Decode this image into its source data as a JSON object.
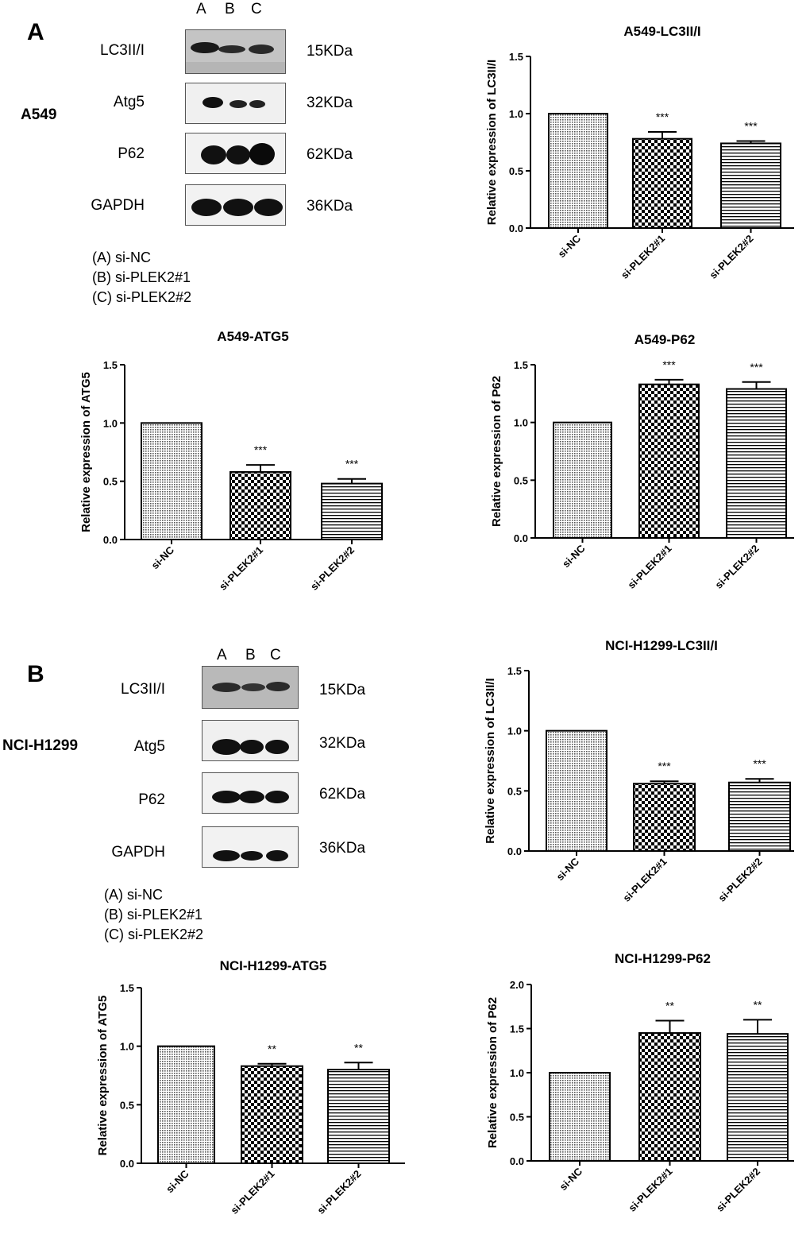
{
  "panels": [
    {
      "letter": "A",
      "cell_line": "A549",
      "lanes": [
        "A",
        "B",
        "C"
      ],
      "proteins": [
        {
          "name": "LC3II/I",
          "kda": "15KDa"
        },
        {
          "name": "Atg5",
          "kda": "32KDa"
        },
        {
          "name": "P62",
          "kda": "62KDa"
        },
        {
          "name": "GAPDH",
          "kda": "36KDa"
        }
      ],
      "legend": [
        "(A) si-NC",
        "(B) si-PLEK2#1",
        "(C) si-PLEK2#2"
      ]
    },
    {
      "letter": "B",
      "cell_line": "NCI-H1299",
      "lanes": [
        "A",
        "B",
        "C"
      ],
      "proteins": [
        {
          "name": "LC3II/I",
          "kda": "15KDa"
        },
        {
          "name": "Atg5",
          "kda": "32KDa"
        },
        {
          "name": "P62",
          "kda": "62KDa"
        },
        {
          "name": "GAPDH",
          "kda": "36KDa"
        }
      ],
      "legend": [
        "(A) si-NC",
        "(B) si-PLEK2#1",
        "(C) si-PLEK2#2"
      ]
    }
  ],
  "chart_data": [
    {
      "type": "bar",
      "title": "A549-LC3II/I",
      "ylabel": "Relative expression of LC3II/I",
      "categories": [
        "si-NC",
        "si-PLEK2#1",
        "si-PLEK2#2"
      ],
      "values": [
        1.0,
        0.78,
        0.74
      ],
      "errors": [
        0,
        0.06,
        0.02
      ],
      "significance": [
        "",
        "***",
        "***"
      ],
      "ylim": [
        0,
        1.5
      ],
      "yticks": [
        "0.0",
        "0.5",
        "1.0",
        "1.5"
      ],
      "patterns": [
        "dots",
        "checker",
        "hlines"
      ]
    },
    {
      "type": "bar",
      "title": "A549-ATG5",
      "ylabel": "Relative expression of ATG5",
      "categories": [
        "si-NC",
        "si-PLEK2#1",
        "si-PLEK2#2"
      ],
      "values": [
        1.0,
        0.58,
        0.48
      ],
      "errors": [
        0,
        0.06,
        0.04
      ],
      "significance": [
        "",
        "***",
        "***"
      ],
      "ylim": [
        0,
        1.5
      ],
      "yticks": [
        "0.0",
        "0.5",
        "1.0",
        "1.5"
      ],
      "patterns": [
        "dots",
        "checker",
        "hlines"
      ]
    },
    {
      "type": "bar",
      "title": "A549-P62",
      "ylabel": "Relative expression of P62",
      "categories": [
        "si-NC",
        "si-PLEK2#1",
        "si-PLEK2#2"
      ],
      "values": [
        1.0,
        1.33,
        1.29
      ],
      "errors": [
        0,
        0.04,
        0.06
      ],
      "significance": [
        "",
        "***",
        "***"
      ],
      "ylim": [
        0,
        1.5
      ],
      "yticks": [
        "0.0",
        "0.5",
        "1.0",
        "1.5"
      ],
      "patterns": [
        "dots",
        "checker",
        "hlines"
      ]
    },
    {
      "type": "bar",
      "title": "NCI-H1299-LC3II/I",
      "ylabel": "Relative expression of LC3II/I",
      "categories": [
        "si-NC",
        "si-PLEK2#1",
        "si-PLEK2#2"
      ],
      "values": [
        1.0,
        0.56,
        0.57
      ],
      "errors": [
        0,
        0.02,
        0.03
      ],
      "significance": [
        "",
        "***",
        "***"
      ],
      "ylim": [
        0,
        1.5
      ],
      "yticks": [
        "0.0",
        "0.5",
        "1.0",
        "1.5"
      ],
      "patterns": [
        "dots",
        "checker",
        "hlines"
      ]
    },
    {
      "type": "bar",
      "title": "NCI-H1299-ATG5",
      "ylabel": "Relative expression of ATG5",
      "categories": [
        "si-NC",
        "si-PLEK2#1",
        "si-PLEK2#2"
      ],
      "values": [
        1.0,
        0.83,
        0.8
      ],
      "errors": [
        0,
        0.02,
        0.06
      ],
      "significance": [
        "",
        "**",
        "**"
      ],
      "ylim": [
        0,
        1.5
      ],
      "yticks": [
        "0.0",
        "0.5",
        "1.0",
        "1.5"
      ],
      "patterns": [
        "dots",
        "checker",
        "hlines"
      ]
    },
    {
      "type": "bar",
      "title": "NCI-H1299-P62",
      "ylabel": "Relative expression of P62",
      "categories": [
        "si-NC",
        "si-PLEK2#1",
        "si-PLEK2#2"
      ],
      "values": [
        1.0,
        1.45,
        1.44
      ],
      "errors": [
        0,
        0.14,
        0.16
      ],
      "significance": [
        "",
        "**",
        "**"
      ],
      "ylim": [
        0,
        2.0
      ],
      "yticks": [
        "0.0",
        "0.5",
        "1.0",
        "1.5",
        "2.0"
      ],
      "patterns": [
        "dots",
        "checker",
        "hlines"
      ]
    }
  ]
}
